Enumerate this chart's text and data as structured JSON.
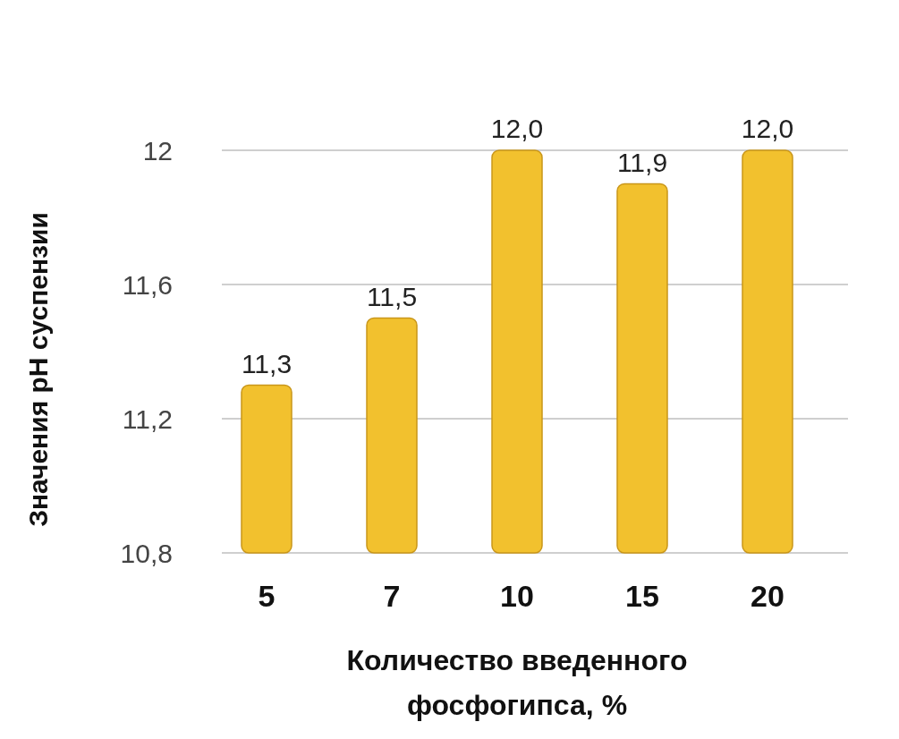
{
  "chart_data": {
    "type": "bar",
    "xlabel": "Количество введенного фосфогипса, %",
    "ylabel": "Значения pH суспензии",
    "categories": [
      "5",
      "7",
      "10",
      "15",
      "20"
    ],
    "values": [
      11.3,
      11.5,
      12.0,
      11.9,
      12.0
    ],
    "value_labels": [
      "11,3",
      "11,5",
      "12,0",
      "11,9",
      "12,0"
    ],
    "color": "#f2c12e",
    "ylim": [
      10.8,
      12
    ],
    "yticks": [
      {
        "value": 10.8,
        "label": "10,8"
      },
      {
        "value": 11.2,
        "label": "11,2"
      },
      {
        "value": 11.6,
        "label": "11,6"
      },
      {
        "value": 12,
        "label": "12"
      }
    ],
    "grid": "y"
  }
}
